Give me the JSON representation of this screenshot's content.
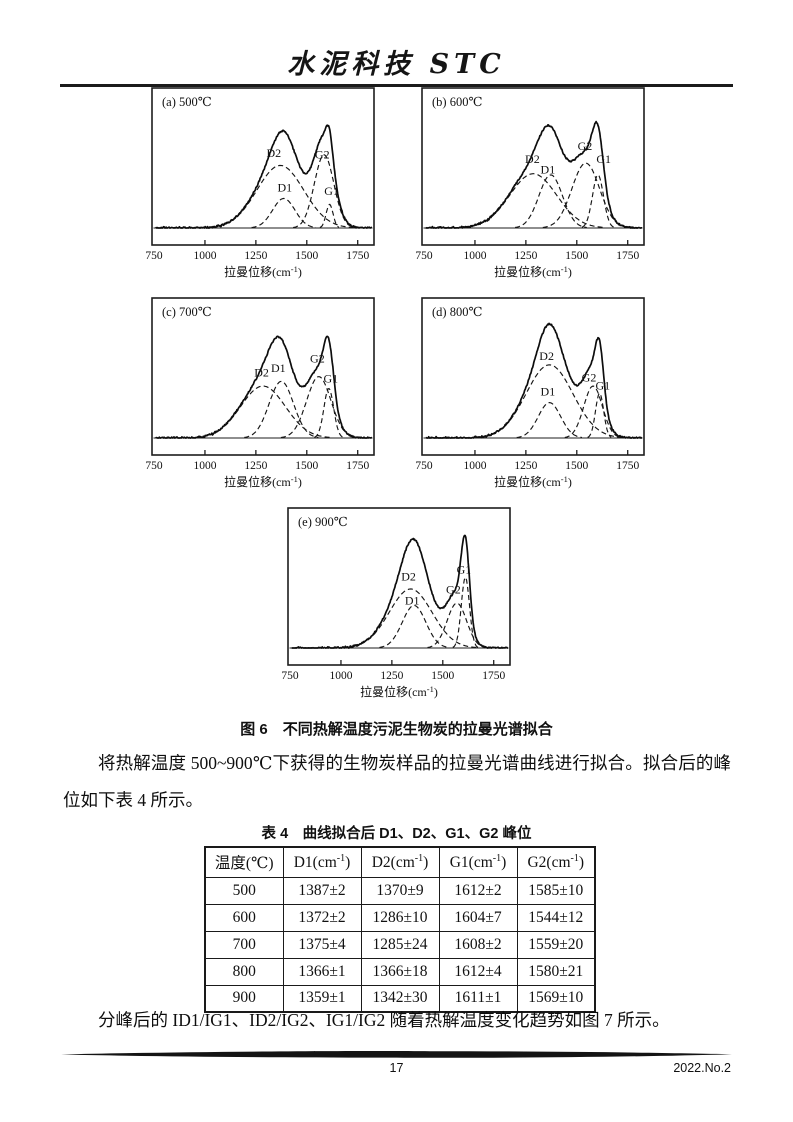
{
  "page": {
    "header": {
      "journal_title": "水泥科技 STC"
    },
    "figure": {
      "caption": "图 6　不同热解温度污泥生物炭的拉曼光谱拟合"
    },
    "paragraph1": "将热解温度 500~900℃下获得的生物炭样品的拉曼光谱曲线进行拟合。拟合后的峰位如下表 4 所示。",
    "table": {
      "title": "表 4　曲线拟合后 D1、D2、G1、G2 峰位",
      "headers": [
        {
          "pre": "温度(℃)",
          "sup": "",
          "post": ""
        },
        {
          "pre": "D1(cm",
          "sup": "-1",
          "post": ")"
        },
        {
          "pre": "D2(cm",
          "sup": "-1",
          "post": ")"
        },
        {
          "pre": "G1(cm",
          "sup": "-1",
          "post": ")"
        },
        {
          "pre": "G2(cm",
          "sup": "-1",
          "post": ")"
        }
      ],
      "rows": [
        [
          "500",
          "1387±2",
          "1370±9",
          "1612±2",
          "1585±10"
        ],
        [
          "600",
          "1372±2",
          "1286±10",
          "1604±7",
          "1544±12"
        ],
        [
          "700",
          "1375±4",
          "1285±24",
          "1608±2",
          "1559±20"
        ],
        [
          "800",
          "1366±1",
          "1366±18",
          "1612±4",
          "1580±21"
        ],
        [
          "900",
          "1359±1",
          "1342±30",
          "1611±1",
          "1569±10"
        ]
      ]
    },
    "paragraph2": "分峰后的 ID1/IG1、ID2/IG2、IG1/IG2 随着热解温度变化趋势如图 7 所示。",
    "footer": {
      "page_number": "17",
      "issue": "2022.No.2"
    }
  },
  "chart_data": [
    {
      "type": "line",
      "title": "(a) 500℃",
      "xlabel": {
        "pre": "拉曼位移(cm",
        "sup": "-1",
        "post": ")"
      },
      "x_ticks": [
        750,
        1000,
        1250,
        1500,
        1750
      ],
      "x_range": [
        740,
        1830
      ],
      "solid_series": "实验拉曼光谱(实线) = 各拟合峰之和",
      "solid_k": 1.06,
      "peaks": [
        {
          "name": "D2",
          "center": 1370,
          "sigma": 115,
          "amp": 0.53,
          "label_x": 1338,
          "label_y": 0.6
        },
        {
          "name": "D1",
          "center": 1387,
          "sigma": 55,
          "amp": 0.25,
          "label_x": 1392,
          "label_y": 0.31
        },
        {
          "name": "G2",
          "center": 1585,
          "sigma": 48,
          "amp": 0.62,
          "label_x": 1576,
          "label_y": 0.59
        },
        {
          "name": "G1",
          "center": 1612,
          "sigma": 17,
          "amp": 0.2,
          "label_x": 1622,
          "label_y": 0.28
        }
      ]
    },
    {
      "type": "line",
      "title": "(b) 600℃",
      "xlabel": {
        "pre": "拉曼位移(cm",
        "sup": "-1",
        "post": ")"
      },
      "x_ticks": [
        750,
        1000,
        1250,
        1500,
        1750
      ],
      "x_range": [
        740,
        1830
      ],
      "solid_series": "实验拉曼光谱(实线) = 各拟合峰之和",
      "solid_k": 1.05,
      "peaks": [
        {
          "name": "D2",
          "center": 1286,
          "sigma": 115,
          "amp": 0.46,
          "label_x": 1282,
          "label_y": 0.55
        },
        {
          "name": "D1",
          "center": 1372,
          "sigma": 58,
          "amp": 0.45,
          "label_x": 1358,
          "label_y": 0.46
        },
        {
          "name": "G2",
          "center": 1544,
          "sigma": 68,
          "amp": 0.55,
          "label_x": 1540,
          "label_y": 0.66
        },
        {
          "name": "G1",
          "center": 1604,
          "sigma": 27,
          "amp": 0.45,
          "label_x": 1632,
          "label_y": 0.55
        }
      ]
    },
    {
      "type": "line",
      "title": "(c) 700℃",
      "xlabel": {
        "pre": "拉曼位移(cm",
        "sup": "-1",
        "post": ")"
      },
      "x_ticks": [
        750,
        1000,
        1250,
        1500,
        1750
      ],
      "x_range": [
        740,
        1830
      ],
      "solid_series": "实验拉曼光谱(实线) = 各拟合峰之和",
      "solid_k": 1.05,
      "peaks": [
        {
          "name": "D2",
          "center": 1285,
          "sigma": 110,
          "amp": 0.44,
          "label_x": 1278,
          "label_y": 0.52
        },
        {
          "name": "D1",
          "center": 1375,
          "sigma": 60,
          "amp": 0.48,
          "label_x": 1360,
          "label_y": 0.56
        },
        {
          "name": "G2",
          "center": 1559,
          "sigma": 60,
          "amp": 0.52,
          "label_x": 1552,
          "label_y": 0.64
        },
        {
          "name": "G1",
          "center": 1608,
          "sigma": 24,
          "amp": 0.42,
          "label_x": 1618,
          "label_y": 0.47
        }
      ]
    },
    {
      "type": "line",
      "title": "(d) 800℃",
      "xlabel": {
        "pre": "拉曼位移(cm",
        "sup": "-1",
        "post": ")"
      },
      "x_ticks": [
        750,
        1000,
        1250,
        1500,
        1750
      ],
      "x_range": [
        740,
        1830
      ],
      "solid_series": "实验拉曼光谱(实线) = 各拟合峰之和",
      "solid_k": 1.05,
      "peaks": [
        {
          "name": "D2",
          "center": 1366,
          "sigma": 115,
          "amp": 0.62,
          "label_x": 1352,
          "label_y": 0.66
        },
        {
          "name": "D1",
          "center": 1366,
          "sigma": 55,
          "amp": 0.3,
          "label_x": 1358,
          "label_y": 0.36
        },
        {
          "name": "G2",
          "center": 1580,
          "sigma": 46,
          "amp": 0.44,
          "label_x": 1560,
          "label_y": 0.48
        },
        {
          "name": "G1",
          "center": 1612,
          "sigma": 20,
          "amp": 0.38,
          "label_x": 1628,
          "label_y": 0.41
        }
      ]
    },
    {
      "type": "line",
      "title": "(e) 900℃",
      "xlabel": {
        "pre": "拉曼位移(cm",
        "sup": "-1",
        "post": ")"
      },
      "x_ticks": [
        750,
        1000,
        1250,
        1500,
        1750
      ],
      "x_range": [
        740,
        1830
      ],
      "solid_series": "实验拉曼光谱(实线) = 各拟合峰之和",
      "solid_k": 1.08,
      "peaks": [
        {
          "name": "D2",
          "center": 1342,
          "sigma": 105,
          "amp": 0.5,
          "label_x": 1332,
          "label_y": 0.57
        },
        {
          "name": "D1",
          "center": 1359,
          "sigma": 58,
          "amp": 0.36,
          "label_x": 1350,
          "label_y": 0.37
        },
        {
          "name": "G2",
          "center": 1569,
          "sigma": 48,
          "amp": 0.38,
          "label_x": 1552,
          "label_y": 0.46
        },
        {
          "name": "G1",
          "center": 1611,
          "sigma": 20,
          "amp": 0.6,
          "label_x": 1604,
          "label_y": 0.63
        }
      ]
    }
  ]
}
